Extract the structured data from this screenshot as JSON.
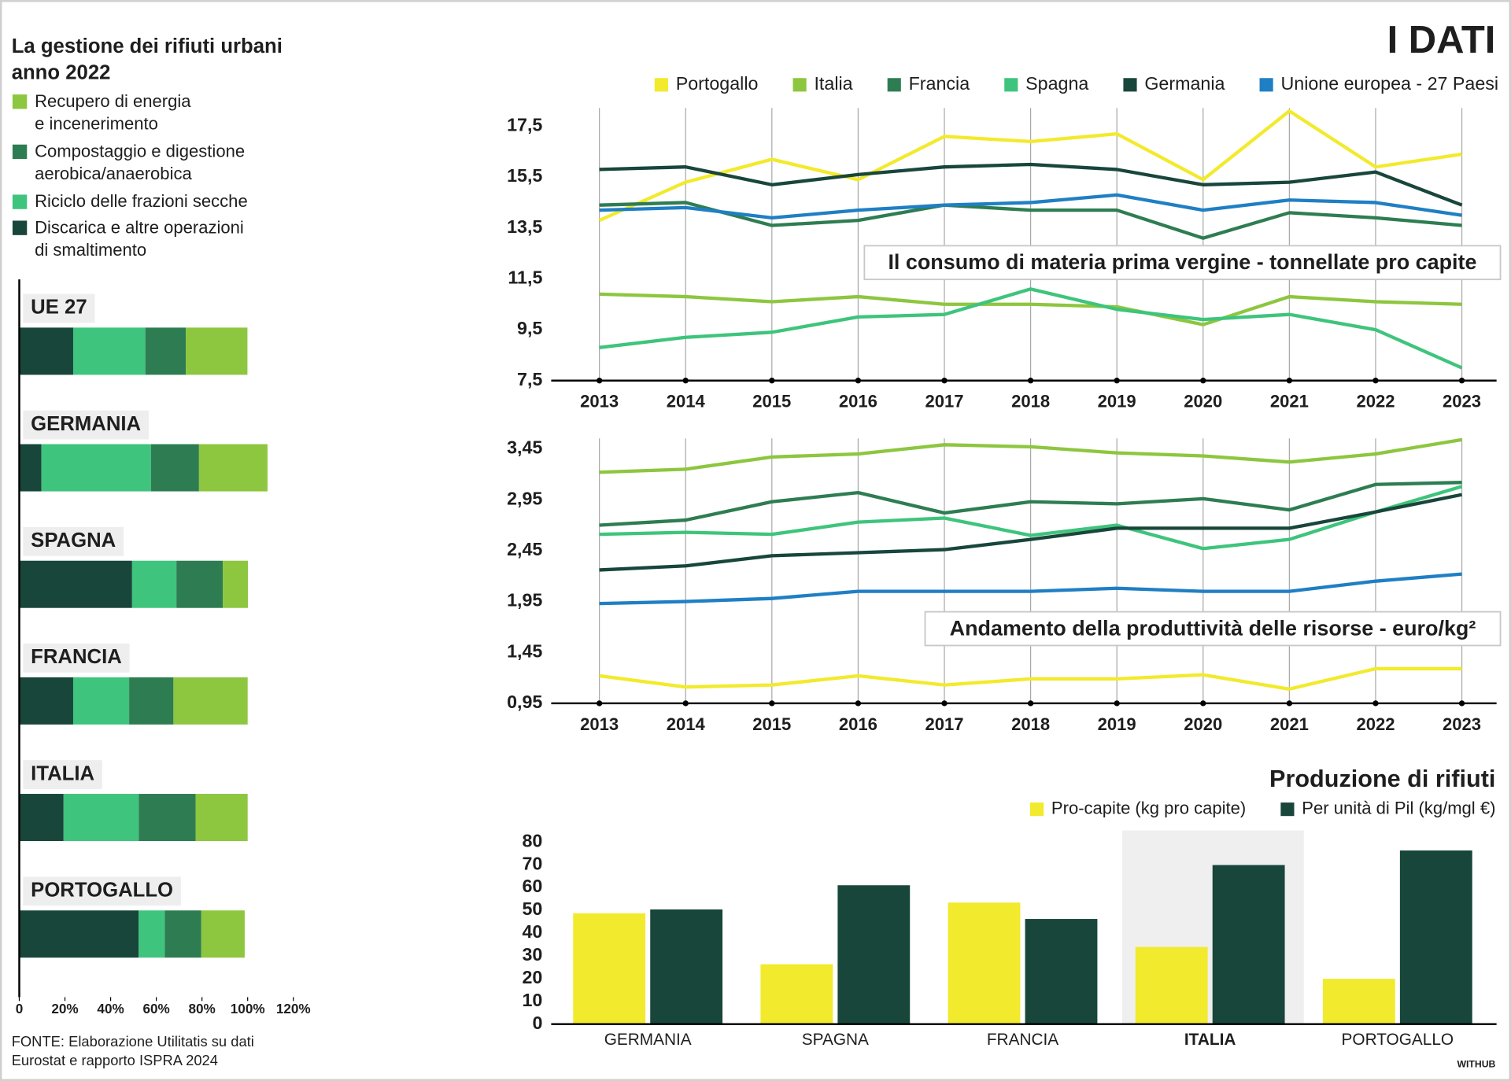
{
  "header": {
    "title": "I DATI"
  },
  "footer": {
    "source": "FONTE: Elaborazione Utilitatis su dati\nEurostat e rapporto ISPRA 2024",
    "credit": "WITHUB"
  },
  "chart_data": [
    {
      "type": "bar",
      "horizontal": true,
      "stacked": true,
      "title": "La gestione dei rifiuti urbani\nanno 2022",
      "categories": [
        "UE 27",
        "GERMANIA",
        "SPAGNA",
        "FRANCIA",
        "ITALIA",
        "PORTOGALLO"
      ],
      "series": [
        {
          "name": "Recupero di energia\ne incenerimento",
          "color": "#8dc63f",
          "values": [
            27,
            30,
            11,
            32.5,
            22.8,
            19
          ]
        },
        {
          "name": "Compostaggio e digestione\naerobica/anaerobica",
          "color": "#2e7d52",
          "values": [
            17.7,
            21,
            20.3,
            19.4,
            24.9,
            16
          ]
        },
        {
          "name": "Riciclo delle frazioni secche",
          "color": "#3ec47c",
          "values": [
            31.6,
            48,
            19.4,
            24.5,
            32.9,
            11.4
          ]
        },
        {
          "name": "Discarica e altre operazioni\ndi smaltimento",
          "color": "#18463a",
          "values": [
            23.6,
            9.7,
            49.4,
            23.6,
            19.4,
            52.3
          ]
        }
      ],
      "xlim": [
        0,
        120
      ],
      "xticks": [
        0,
        {
          "value": 20,
          "label": "20%"
        },
        {
          "value": 40,
          "label": "40%"
        },
        {
          "value": 60,
          "label": "60%"
        },
        {
          "value": 80,
          "label": "80%"
        },
        {
          "value": 100,
          "label": "100%"
        },
        {
          "value": 120,
          "label": "120%"
        }
      ]
    },
    {
      "type": "line",
      "legend": "top-right",
      "title": "Il consumo di materia prima vergine - tonnellate pro capite",
      "categories": [
        "2013",
        "2014",
        "2015",
        "2016",
        "2017",
        "2018",
        "2019",
        "2020",
        "2021",
        "2022",
        "2023"
      ],
      "series": [
        {
          "name": "Portogallo",
          "color": "#f2ea2c",
          "values": [
            13.8,
            15.3,
            16.2,
            15.4,
            17.1,
            16.9,
            17.2,
            15.4,
            18.1,
            15.9,
            16.4
          ]
        },
        {
          "name": "Italia",
          "color": "#8dc63f",
          "values": [
            10.9,
            10.8,
            10.6,
            10.8,
            10.5,
            10.5,
            10.4,
            9.7,
            10.8,
            10.6,
            10.5
          ]
        },
        {
          "name": "Francia",
          "color": "#2e7d52",
          "values": [
            14.4,
            14.5,
            13.6,
            13.8,
            14.4,
            14.2,
            14.2,
            13.1,
            14.1,
            13.9,
            13.6
          ]
        },
        {
          "name": "Spagna",
          "color": "#3ec47c",
          "values": [
            8.8,
            9.2,
            9.4,
            10.0,
            10.1,
            11.1,
            10.3,
            9.9,
            10.1,
            9.5,
            8.0
          ]
        },
        {
          "name": "Germania",
          "color": "#18463a",
          "values": [
            15.8,
            15.9,
            15.2,
            15.6,
            15.9,
            16.0,
            15.8,
            15.2,
            15.3,
            15.7,
            14.4
          ]
        },
        {
          "name": "Unione europea - 27 Paesi",
          "color": "#1f7fc4",
          "values": [
            14.2,
            14.3,
            13.9,
            14.2,
            14.4,
            14.5,
            14.8,
            14.2,
            14.6,
            14.5,
            14.0
          ]
        }
      ],
      "ylim": [
        7.5,
        18.5
      ],
      "yticks": [
        {
          "value": 7.5,
          "label": "7,5"
        },
        {
          "value": 9.5,
          "label": "9,5"
        },
        {
          "value": 11.5,
          "label": "11,5"
        },
        {
          "value": 13.5,
          "label": "13,5"
        },
        {
          "value": 15.5,
          "label": "15,5"
        },
        {
          "value": 17.5,
          "label": "17,5"
        }
      ]
    },
    {
      "type": "line",
      "title": "Andamento della produttività delle risorse - euro/kg²",
      "categories": [
        "2013",
        "2014",
        "2015",
        "2016",
        "2017",
        "2018",
        "2019",
        "2020",
        "2021",
        "2022",
        "2023"
      ],
      "series": [
        {
          "color": "#f2ea2c",
          "values": [
            1.22,
            1.11,
            1.13,
            1.22,
            1.13,
            1.19,
            1.19,
            1.23,
            1.09,
            1.29,
            1.29
          ]
        },
        {
          "color": "#8dc63f",
          "values": [
            3.22,
            3.25,
            3.37,
            3.4,
            3.49,
            3.47,
            3.41,
            3.38,
            3.32,
            3.4,
            3.54
          ]
        },
        {
          "color": "#2e7d52",
          "values": [
            2.7,
            2.75,
            2.93,
            3.02,
            2.82,
            2.93,
            2.91,
            2.96,
            2.85,
            3.1,
            3.12
          ]
        },
        {
          "color": "#3ec47c",
          "values": [
            2.61,
            2.63,
            2.61,
            2.73,
            2.77,
            2.6,
            2.7,
            2.47,
            2.56,
            2.83,
            3.08
          ]
        },
        {
          "color": "#18463a",
          "values": [
            2.26,
            2.3,
            2.4,
            2.43,
            2.46,
            2.56,
            2.67,
            2.67,
            2.67,
            2.83,
            3.0
          ]
        },
        {
          "color": "#1f7fc4",
          "values": [
            1.93,
            1.95,
            1.98,
            2.05,
            2.05,
            2.05,
            2.08,
            2.05,
            2.05,
            2.15,
            2.22
          ]
        }
      ],
      "ylim": [
        0.95,
        3.6
      ],
      "yticks": [
        {
          "value": 0.95,
          "label": "0,95"
        },
        {
          "value": 1.45,
          "label": "1,45"
        },
        {
          "value": 1.95,
          "label": "1,95"
        },
        {
          "value": 2.45,
          "label": "2,45"
        },
        {
          "value": 2.95,
          "label": "2,95"
        },
        {
          "value": 3.45,
          "label": "3,45"
        }
      ]
    },
    {
      "type": "bar",
      "legend": "top-right",
      "highlight": "ITALIA",
      "title": "Produzione di rifiuti",
      "categories": [
        "GERMANIA",
        "SPAGNA",
        "FRANCIA",
        "ITALIA",
        "PORTOGALLO"
      ],
      "series": [
        {
          "name": "Pro-capite (kg pro capite)",
          "color": "#f2ea2c",
          "values": [
            48.7,
            26.3,
            53.4,
            33.9,
            19.9
          ]
        },
        {
          "name": "Per unità di Pil (kg/mgl €)",
          "color": "#18463a",
          "values": [
            50.4,
            61,
            46.2,
            69.9,
            76.3
          ]
        }
      ],
      "ylim": [
        0,
        80
      ],
      "yticks": [
        0,
        10,
        20,
        30,
        40,
        50,
        60,
        70,
        80
      ]
    }
  ]
}
